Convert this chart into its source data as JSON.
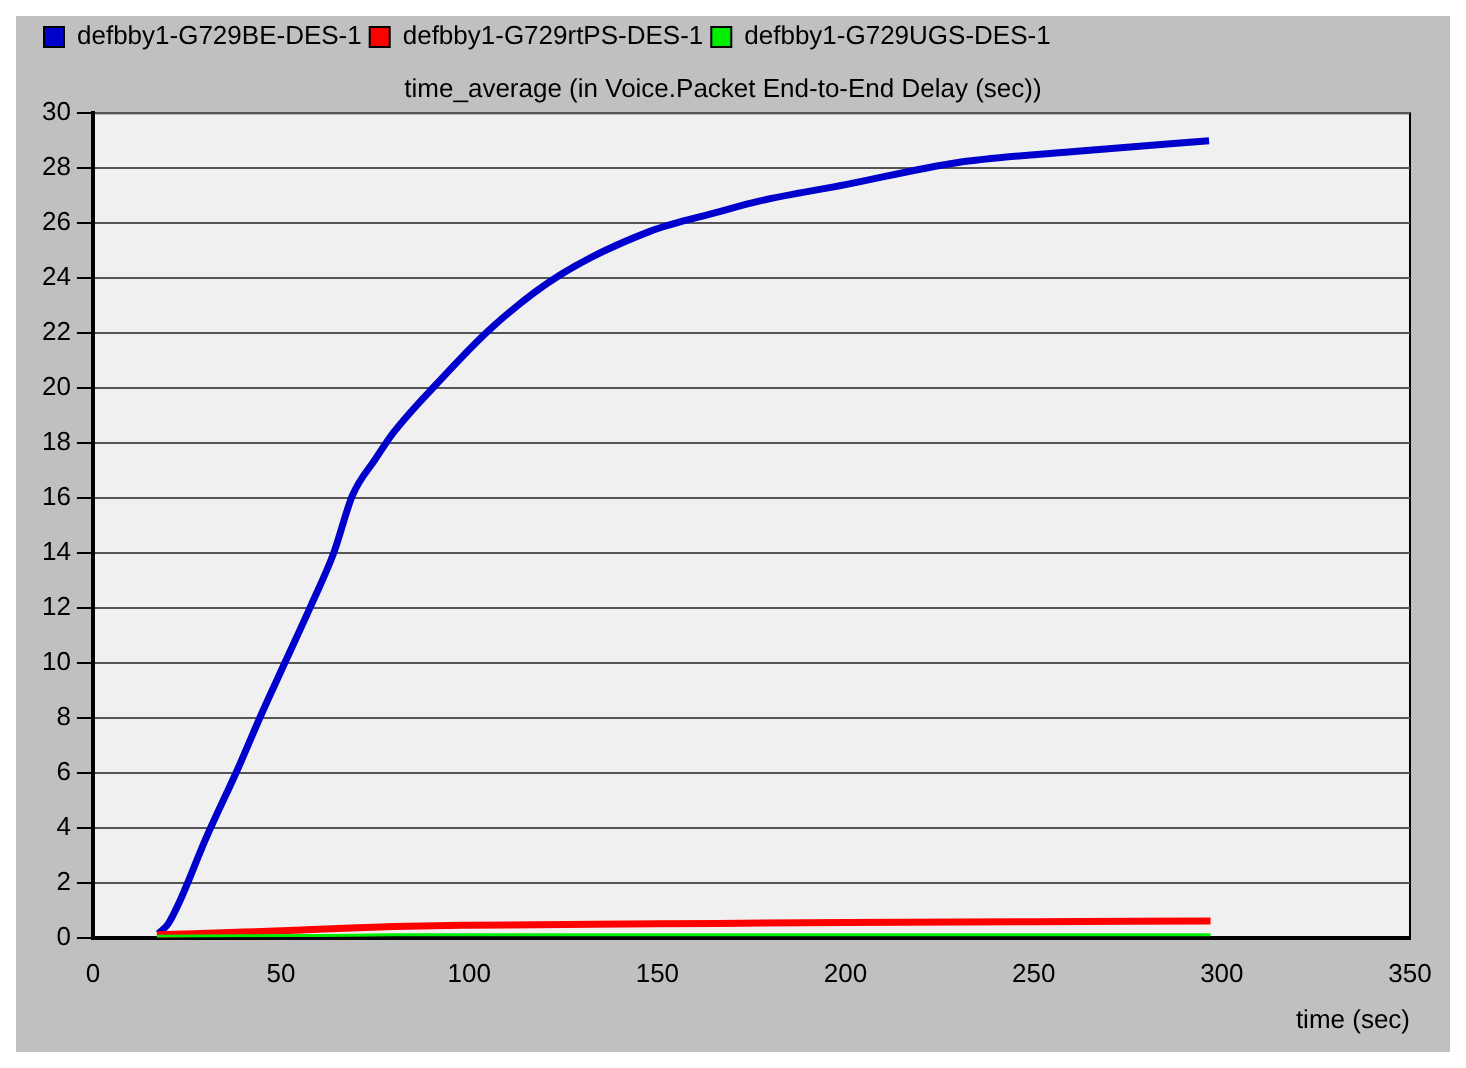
{
  "chart_data": {
    "type": "line",
    "title": "time_average (in Voice.Packet End-to-End Delay (sec))",
    "xlabel": "time (sec)",
    "xlim": [
      0,
      350
    ],
    "xticks": [
      0,
      50,
      100,
      150,
      200,
      250,
      300,
      350
    ],
    "ylim": [
      0,
      30
    ],
    "yticks": [
      0,
      2,
      4,
      6,
      8,
      10,
      12,
      14,
      16,
      18,
      20,
      22,
      24,
      26,
      28,
      30
    ],
    "grid": "y",
    "legend": "top left",
    "marker": "none",
    "line_style": "solid",
    "series": [
      {
        "name": "defbby1-G729BE-DES-1",
        "color": "#0000cc",
        "x": [
          17.4,
          20,
          23,
          30,
          38.7,
          45,
          51,
          58,
          64,
          69,
          75,
          80,
          91,
          106,
          124,
          148,
          166,
          177,
          200,
          229.5,
          260,
          296.6
        ],
        "values": [
          0.15,
          0.5,
          1.3,
          3.6,
          6.2,
          8.2,
          10,
          12.1,
          14,
          16.1,
          17.4,
          18.4,
          20.1,
          22.2,
          24.1,
          25.7,
          26.4,
          26.8,
          27.4,
          28.2,
          28.6,
          29.0
        ]
      },
      {
        "name": "defbby1-G729rtPS-DES-1",
        "color": "#ff0000",
        "x": [
          17,
          40,
          60,
          80,
          100,
          150,
          200,
          250,
          297
        ],
        "values": [
          0.1,
          0.2,
          0.3,
          0.4,
          0.45,
          0.5,
          0.55,
          0.58,
          0.6
        ]
      },
      {
        "name": "defbby1-G729UGS-DES-1",
        "color": "#00ee00",
        "x": [
          17,
          40,
          60,
          80,
          100,
          150,
          200,
          250,
          297
        ],
        "values": [
          0.05,
          0.07,
          0.08,
          0.1,
          0.1,
          0.1,
          0.1,
          0.1,
          0.1
        ]
      }
    ]
  }
}
